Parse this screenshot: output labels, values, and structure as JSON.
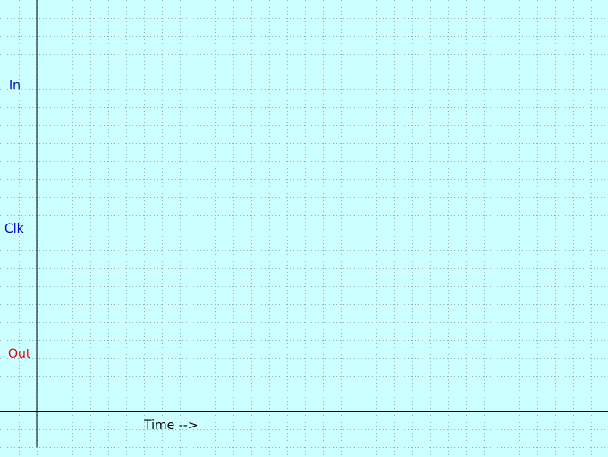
{
  "colors": {
    "background": "#ccffff",
    "grid": "#9aaeb0",
    "axis": "#000000",
    "input_signal": "#0000cc",
    "output_signal": "#dd0000",
    "axis_label": "#000000"
  },
  "signals": [
    {
      "name": "In",
      "kind": "input"
    },
    {
      "name": "Clk",
      "kind": "input"
    },
    {
      "name": "Out",
      "kind": "output"
    }
  ],
  "time_axis": {
    "label": "Time -->"
  }
}
